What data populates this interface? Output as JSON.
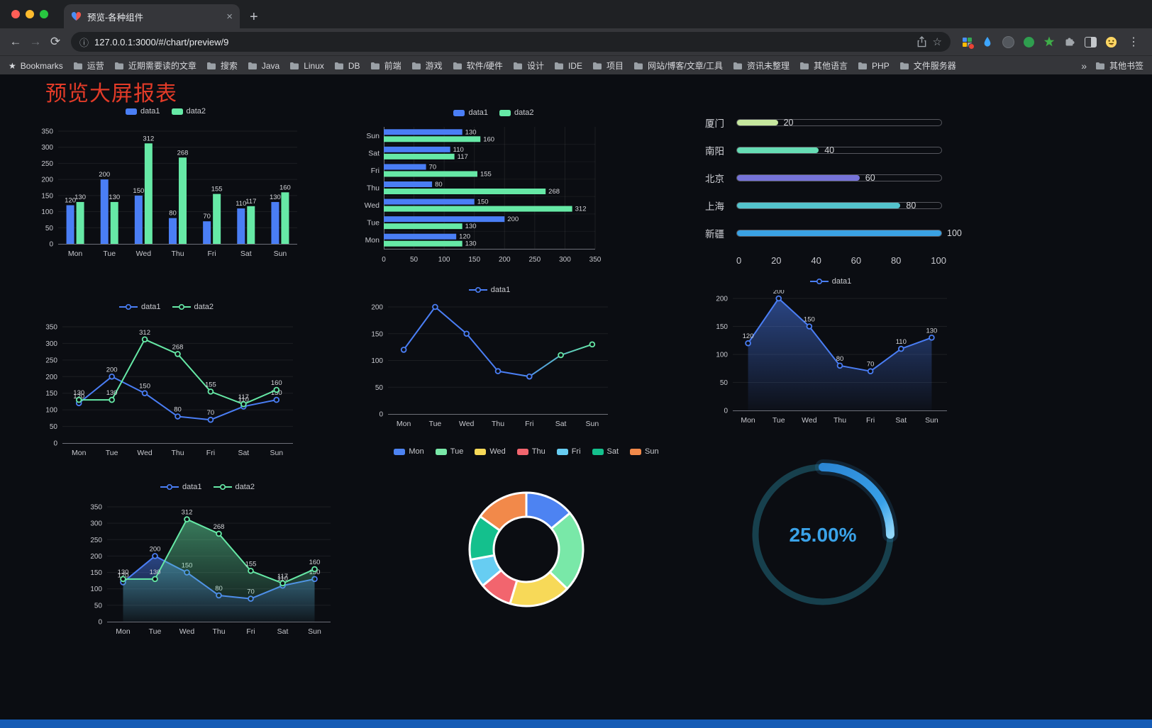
{
  "browser": {
    "tab_title": "预览-各种组件",
    "url": "127.0.0.1:3000/#/chart/preview/9",
    "new_tab_label": "+",
    "icons": [
      "back-icon",
      "forward-icon",
      "reload-icon",
      "site-info-icon",
      "share-icon",
      "bookmark-star-icon",
      "apps-grid-icon",
      "water-drop-icon",
      "dark-circle-icon",
      "green-circle-icon",
      "green-star-icon",
      "puzzle-icon",
      "split-view-icon",
      "emoji-face-icon",
      "browser-menu-icon",
      "folder-icon"
    ],
    "bookmarks": {
      "first": "Bookmarks",
      "folders": [
        "运营",
        "近期需要读的文章",
        "搜索",
        "Java",
        "Linux",
        "DB",
        "前端",
        "游戏",
        "软件/硬件",
        "设计",
        "IDE",
        "项目",
        "网站/博客/文章/工具",
        "资讯未整理",
        "其他语言",
        "PHP",
        "文件服务器"
      ],
      "overflow": "»",
      "other": "其他书签"
    }
  },
  "page": {
    "title": "预览大屏报表",
    "colors": {
      "background": "#0b0d12",
      "title": "#e23b28",
      "footer_bar": "#155bb5",
      "axis": "#6e7079",
      "axis_text": "#c6c7cd",
      "value_label": "#d5d6da"
    }
  },
  "palette": {
    "data1": "#4a7ef5",
    "data2": "#66e9a6"
  },
  "chart_data": [
    {
      "id": "bar-vertical",
      "type": "bar",
      "legend": [
        "data1",
        "data2"
      ],
      "categories": [
        "Mon",
        "Tue",
        "Wed",
        "Thu",
        "Fri",
        "Sat",
        "Sun"
      ],
      "series": [
        {
          "name": "data1",
          "color": "#4a7ef5",
          "values": [
            120,
            200,
            150,
            80,
            70,
            110,
            130
          ]
        },
        {
          "name": "data2",
          "color": "#66e9a6",
          "values": [
            130,
            130,
            312,
            268,
            155,
            117,
            160
          ]
        }
      ],
      "ylim": [
        0,
        350
      ],
      "ytick_step": 50,
      "value_labels": true
    },
    {
      "id": "bar-horizontal",
      "type": "hbar",
      "legend": [
        "data1",
        "data2"
      ],
      "categories": [
        "Mon",
        "Tue",
        "Wed",
        "Thu",
        "Fri",
        "Sat",
        "Sun"
      ],
      "display_order": "Sun-at-top",
      "series": [
        {
          "name": "data1",
          "color": "#4a7ef5",
          "values": [
            120,
            200,
            150,
            80,
            70,
            110,
            130
          ]
        },
        {
          "name": "data2",
          "color": "#66e9a6",
          "values": [
            130,
            130,
            312,
            268,
            155,
            117,
            160
          ]
        }
      ],
      "xlim": [
        0,
        350
      ],
      "xtick_step": 50,
      "value_labels": true
    },
    {
      "id": "progress-bars",
      "type": "progress",
      "max": 100,
      "xticks": [
        0,
        20,
        40,
        60,
        80,
        100
      ],
      "items": [
        {
          "label": "厦门",
          "value": 20,
          "color": "#c6e79e"
        },
        {
          "label": "南阳",
          "value": 40,
          "color": "#66dcb4"
        },
        {
          "label": "北京",
          "value": 60,
          "color": "#7673d8"
        },
        {
          "label": "上海",
          "value": 80,
          "color": "#54c3cc"
        },
        {
          "label": "新疆",
          "value": 100,
          "color": "#3aa2e4"
        }
      ]
    },
    {
      "id": "line-two-series",
      "type": "line",
      "legend": [
        "data1",
        "data2"
      ],
      "categories": [
        "Mon",
        "Tue",
        "Wed",
        "Thu",
        "Fri",
        "Sat",
        "Sun"
      ],
      "series": [
        {
          "name": "data1",
          "color": "#4a7ef5",
          "values": [
            120,
            200,
            150,
            80,
            70,
            110,
            130
          ]
        },
        {
          "name": "data2",
          "color": "#66e9a6",
          "values": [
            130,
            130,
            312,
            268,
            155,
            117,
            160
          ]
        }
      ],
      "ylim": [
        0,
        350
      ],
      "ytick_step": 50,
      "value_labels": true
    },
    {
      "id": "line-single",
      "type": "line",
      "legend": [
        "data1"
      ],
      "categories": [
        "Mon",
        "Tue",
        "Wed",
        "Thu",
        "Fri",
        "Sat",
        "Sun"
      ],
      "series": [
        {
          "name": "data1",
          "color": "#4a7ef5",
          "color_end": "#66e9a6",
          "values": [
            120,
            200,
            150,
            80,
            70,
            110,
            130
          ]
        }
      ],
      "ylim": [
        0,
        200
      ],
      "ytick_step": 50,
      "value_labels": false
    },
    {
      "id": "area-single",
      "type": "area",
      "legend": [
        "data1"
      ],
      "categories": [
        "Mon",
        "Tue",
        "Wed",
        "Thu",
        "Fri",
        "Sat",
        "Sun"
      ],
      "series": [
        {
          "name": "data1",
          "color": "#4a7ef5",
          "area": true,
          "values": [
            120,
            200,
            150,
            80,
            70,
            110,
            130
          ]
        }
      ],
      "ylim": [
        0,
        200
      ],
      "ytick_step": 50,
      "value_labels": true
    },
    {
      "id": "area-two-series",
      "type": "area",
      "legend": [
        "data1",
        "data2"
      ],
      "categories": [
        "Mon",
        "Tue",
        "Wed",
        "Thu",
        "Fri",
        "Sat",
        "Sun"
      ],
      "series": [
        {
          "name": "data1",
          "color": "#4a7ef5",
          "area": true,
          "values": [
            120,
            200,
            150,
            80,
            70,
            110,
            130
          ]
        },
        {
          "name": "data2",
          "color": "#66e9a6",
          "area": true,
          "values": [
            130,
            130,
            312,
            268,
            155,
            117,
            160
          ]
        }
      ],
      "ylim": [
        0,
        350
      ],
      "ytick_step": 50,
      "value_labels": true
    },
    {
      "id": "donut",
      "type": "pie",
      "legend": [
        "Mon",
        "Tue",
        "Wed",
        "Thu",
        "Fri",
        "Sat",
        "Sun"
      ],
      "items": [
        {
          "label": "Mon",
          "value": 120,
          "color": "#4d83f2"
        },
        {
          "label": "Tue",
          "value": 200,
          "color": "#79e8a8"
        },
        {
          "label": "Wed",
          "value": 150,
          "color": "#f7d958"
        },
        {
          "label": "Thu",
          "value": 80,
          "color": "#f2656e"
        },
        {
          "label": "Fri",
          "value": 70,
          "color": "#67cdf2"
        },
        {
          "label": "Sat",
          "value": 110,
          "color": "#14c08d"
        },
        {
          "label": "Sun",
          "value": 130,
          "color": "#f2894a"
        }
      ]
    },
    {
      "id": "gauge",
      "type": "gauge",
      "value": 25,
      "display": "25.00%",
      "color": "#38a0e8",
      "track_color": "#17404d"
    }
  ]
}
